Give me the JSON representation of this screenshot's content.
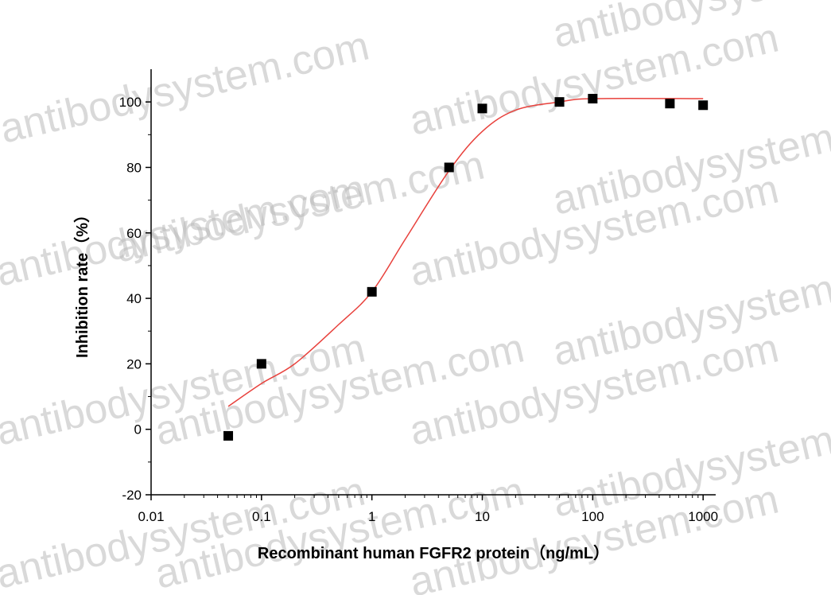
{
  "chart_data": {
    "type": "scatter",
    "x_label": "Recombinant human FGFR2 protein（ng/mL）",
    "y_label": "Inhibition rate（%）",
    "watermark": "antibodysystem.com",
    "xscale": "log",
    "xlim": [
      0.01,
      1300
    ],
    "xticks": [
      0.01,
      0.1,
      1,
      10,
      100,
      1000
    ],
    "ylim": [
      -20,
      110
    ],
    "yticks": [
      -20,
      0,
      20,
      40,
      60,
      80,
      100
    ],
    "series": [
      {
        "kind": "points",
        "color": "#000000",
        "x": [
          0.05,
          0.1,
          1,
          5,
          10,
          50,
          100,
          500,
          1000
        ],
        "values": [
          -2,
          20,
          42,
          80,
          98,
          100,
          101,
          99.5,
          99
        ]
      },
      {
        "kind": "fit",
        "color": "#e8413c",
        "x": [
          0.05,
          0.1,
          0.2,
          0.5,
          1,
          2,
          5,
          10,
          20,
          50,
          100,
          1000
        ],
        "values": [
          7,
          14,
          20,
          32,
          42,
          58,
          79,
          91,
          97.5,
          100,
          101,
          101
        ]
      }
    ]
  }
}
